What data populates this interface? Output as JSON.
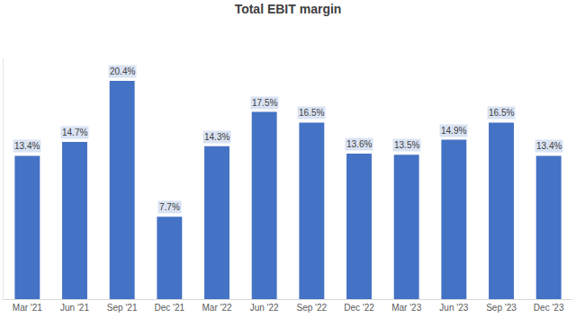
{
  "chart_data": {
    "type": "bar",
    "title": "Total EBIT margin",
    "categories": [
      "Mar '21",
      "Jun '21",
      "Sep '21",
      "Dec '21",
      "Mar '22",
      "Jun '22",
      "Sep '22",
      "Dec '22",
      "Mar '23",
      "Jun '23",
      "Sep '23",
      "Dec '23"
    ],
    "values": [
      13.4,
      14.7,
      20.4,
      7.7,
      14.3,
      17.5,
      16.5,
      13.6,
      13.5,
      14.9,
      16.5,
      13.4
    ],
    "value_labels": [
      "13.4%",
      "14.7%",
      "20.4%",
      "7.7%",
      "14.3%",
      "17.5%",
      "16.5%",
      "13.6%",
      "13.5%",
      "14.9%",
      "16.5%",
      "13.4%"
    ],
    "color": "#4472c4",
    "ylim": [
      0,
      22.5
    ],
    "grid": false,
    "data_labels": true,
    "tick_labels": "x"
  }
}
